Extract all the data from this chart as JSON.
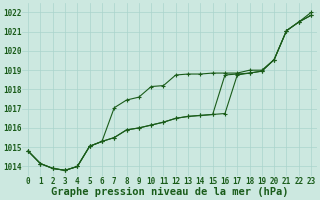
{
  "xlabel": "Graphe pression niveau de la mer (hPa)",
  "xlim": [
    -0.5,
    23.5
  ],
  "ylim": [
    1013.5,
    1022.5
  ],
  "yticks": [
    1014,
    1015,
    1016,
    1017,
    1018,
    1019,
    1020,
    1021,
    1022
  ],
  "xticks": [
    0,
    1,
    2,
    3,
    4,
    5,
    6,
    7,
    8,
    9,
    10,
    11,
    12,
    13,
    14,
    15,
    16,
    17,
    18,
    19,
    20,
    21,
    22,
    23
  ],
  "background_color": "#cce8e0",
  "grid_color": "#aad4cc",
  "line_color": "#1a5c1a",
  "line1": [
    1014.8,
    1014.15,
    1013.9,
    1013.8,
    1014.0,
    1015.05,
    1015.3,
    1017.05,
    1017.45,
    1017.6,
    1018.15,
    1018.2,
    1018.75,
    1018.8,
    1018.8,
    1018.85,
    1018.85,
    1018.85,
    1019.0,
    1019.0,
    1019.55,
    1021.05,
    1021.5,
    1021.85
  ],
  "line2": [
    1014.8,
    1014.15,
    1013.9,
    1013.8,
    1014.0,
    1015.05,
    1015.3,
    1015.5,
    1015.9,
    1016.0,
    1016.15,
    1016.3,
    1016.5,
    1016.6,
    1016.65,
    1016.7,
    1016.75,
    1018.75,
    1018.85,
    1018.95,
    1019.55,
    1021.05,
    1021.5,
    1021.85
  ],
  "line3": [
    1014.8,
    1014.15,
    1013.9,
    1013.8,
    1014.0,
    1015.05,
    1015.3,
    1015.5,
    1015.9,
    1016.0,
    1016.15,
    1016.3,
    1016.5,
    1016.6,
    1016.65,
    1016.7,
    1018.75,
    1018.8,
    1018.85,
    1018.95,
    1019.55,
    1021.05,
    1021.5,
    1022.0
  ],
  "font_color": "#1a5c1a",
  "tick_fontsize": 5.5,
  "xlabel_fontsize": 7.5
}
